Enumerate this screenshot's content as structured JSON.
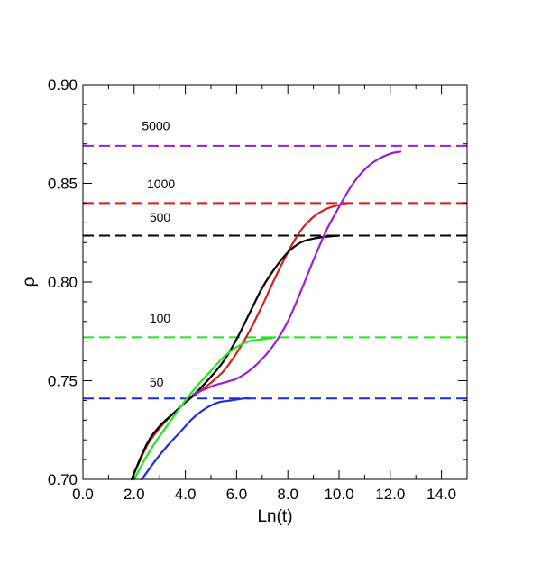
{
  "chart_data": {
    "type": "line",
    "title": "",
    "xlabel": "Ln(t)",
    "ylabel": "ρ",
    "xlim": [
      0,
      15
    ],
    "ylim": [
      0.7,
      0.9
    ],
    "x_ticks": [
      0,
      2,
      4,
      6,
      8,
      10,
      12,
      14
    ],
    "x_tick_labels": [
      "0.0",
      "2.0",
      "4.0",
      "6.0",
      "8.0",
      "10.0",
      "12.0",
      "14.0"
    ],
    "y_ticks": [
      0.7,
      0.75,
      0.8,
      0.85,
      0.9
    ],
    "y_tick_labels": [
      "0.70",
      "0.75",
      "0.80",
      "0.85",
      "0.90"
    ],
    "grid": false,
    "legend": "none",
    "reference_lines": [
      {
        "label": "5000",
        "y": 0.869,
        "color": "#9a1fd6",
        "label_x": 2.3,
        "label_y": 0.877
      },
      {
        "label": "1000",
        "y": 0.84,
        "color": "#d81e1e",
        "label_x": 2.5,
        "label_y": 0.8475
      },
      {
        "label": "500",
        "y": 0.8235,
        "color": "#000000",
        "label_x": 2.6,
        "label_y": 0.8305
      },
      {
        "label": "100",
        "y": 0.772,
        "color": "#1ee81e",
        "label_x": 2.6,
        "label_y": 0.7795
      },
      {
        "label": "50",
        "y": 0.741,
        "color": "#1f2fd6",
        "label_x": 2.6,
        "label_y": 0.747
      }
    ],
    "series": [
      {
        "color": "#d81e1e",
        "x": [
          1.9,
          2.5,
          3.0,
          3.5,
          4.0,
          4.5,
          5.0,
          5.5,
          6.0,
          6.5,
          7.0,
          7.5,
          8.0,
          8.5,
          9.0,
          9.5,
          10.0,
          10.3
        ],
        "y": [
          0.7,
          0.717,
          0.726,
          0.733,
          0.739,
          0.744,
          0.749,
          0.755,
          0.764,
          0.775,
          0.788,
          0.802,
          0.815,
          0.826,
          0.833,
          0.837,
          0.839,
          0.84
        ]
      },
      {
        "color": "#000000",
        "x": [
          1.9,
          2.5,
          3.0,
          3.5,
          4.0,
          4.5,
          5.0,
          5.5,
          6.0,
          6.5,
          7.0,
          7.5,
          8.0,
          8.5,
          9.0,
          9.5,
          10.0
        ],
        "y": [
          0.7,
          0.718,
          0.727,
          0.733,
          0.739,
          0.745,
          0.752,
          0.76,
          0.771,
          0.784,
          0.797,
          0.807,
          0.815,
          0.82,
          0.822,
          0.823,
          0.8235
        ]
      },
      {
        "color": "#1ee81e",
        "x": [
          2.0,
          2.5,
          3.0,
          3.5,
          4.0,
          4.5,
          5.0,
          5.5,
          6.0,
          6.5,
          7.0,
          7.5
        ],
        "y": [
          0.7,
          0.712,
          0.722,
          0.731,
          0.74,
          0.748,
          0.755,
          0.762,
          0.767,
          0.77,
          0.771,
          0.772
        ]
      },
      {
        "color": "#1f2fd6",
        "x": [
          2.3,
          2.8,
          3.3,
          3.8,
          4.3,
          4.8,
          5.3,
          5.8,
          6.3,
          6.5
        ],
        "y": [
          0.7,
          0.709,
          0.717,
          0.724,
          0.731,
          0.736,
          0.739,
          0.74,
          0.741,
          0.741
        ]
      },
      {
        "color": "#9a1fd6",
        "x": [
          4.3,
          5.0,
          5.5,
          6.0,
          6.5,
          7.0,
          7.5,
          8.0,
          8.5,
          9.0,
          9.5,
          10.0,
          10.5,
          11.0,
          11.5,
          12.0,
          12.4
        ],
        "y": [
          0.743,
          0.747,
          0.749,
          0.751,
          0.755,
          0.761,
          0.769,
          0.78,
          0.795,
          0.811,
          0.826,
          0.838,
          0.849,
          0.857,
          0.862,
          0.865,
          0.866
        ]
      }
    ]
  }
}
